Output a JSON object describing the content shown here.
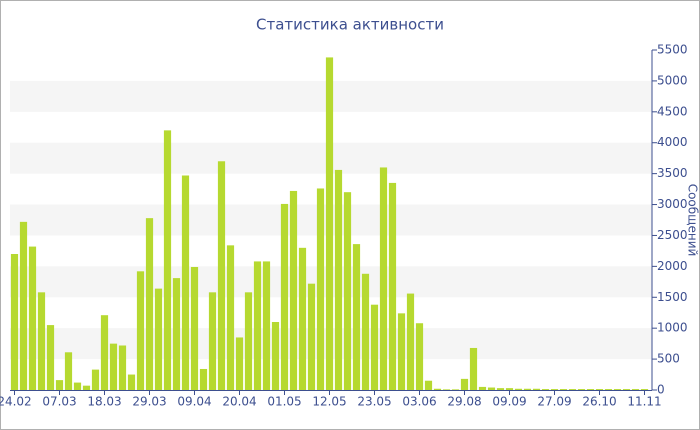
{
  "chart_data": {
    "type": "bar",
    "title": "Статистика активности",
    "y_axis_label": "Сообщений",
    "categories": [
      "24.02",
      null,
      null,
      null,
      null,
      "07.03",
      null,
      null,
      null,
      null,
      "18.03",
      null,
      null,
      null,
      null,
      "29.03",
      null,
      null,
      null,
      null,
      "09.04",
      null,
      null,
      null,
      null,
      "20.04",
      null,
      null,
      null,
      null,
      "01.05",
      null,
      null,
      null,
      null,
      "12.05",
      null,
      null,
      null,
      null,
      "23.05",
      null,
      null,
      null,
      null,
      "03.06",
      null,
      null,
      null,
      null,
      "29.08",
      null,
      null,
      null,
      null,
      "09.09",
      null,
      null,
      null,
      null,
      "27.09",
      null,
      null,
      null,
      null,
      "26.10",
      null,
      null,
      null,
      null,
      "11.11"
    ],
    "values": [
      2200,
      2720,
      2320,
      1580,
      1050,
      160,
      610,
      120,
      70,
      330,
      1210,
      750,
      720,
      250,
      1920,
      2780,
      1640,
      4200,
      1810,
      3470,
      1990,
      340,
      1580,
      3700,
      2340,
      850,
      1580,
      2080,
      2080,
      1100,
      3010,
      3220,
      2300,
      1720,
      3260,
      5380,
      3560,
      3200,
      2360,
      1880,
      1380,
      3600,
      3350,
      1240,
      1560,
      1080,
      150,
      20,
      10,
      10,
      180,
      680,
      50,
      40,
      30,
      30,
      20,
      20,
      20,
      15,
      15,
      15,
      15,
      15,
      15,
      15,
      15,
      15,
      15,
      15,
      15
    ],
    "color": "#b6d930",
    "ylim": [
      0,
      5500
    ],
    "yticks": [
      0,
      500,
      1000,
      1500,
      2000,
      2500,
      3000,
      3500,
      4000,
      4500,
      5000,
      5500
    ],
    "grid": true,
    "y_axis_side": "right"
  }
}
